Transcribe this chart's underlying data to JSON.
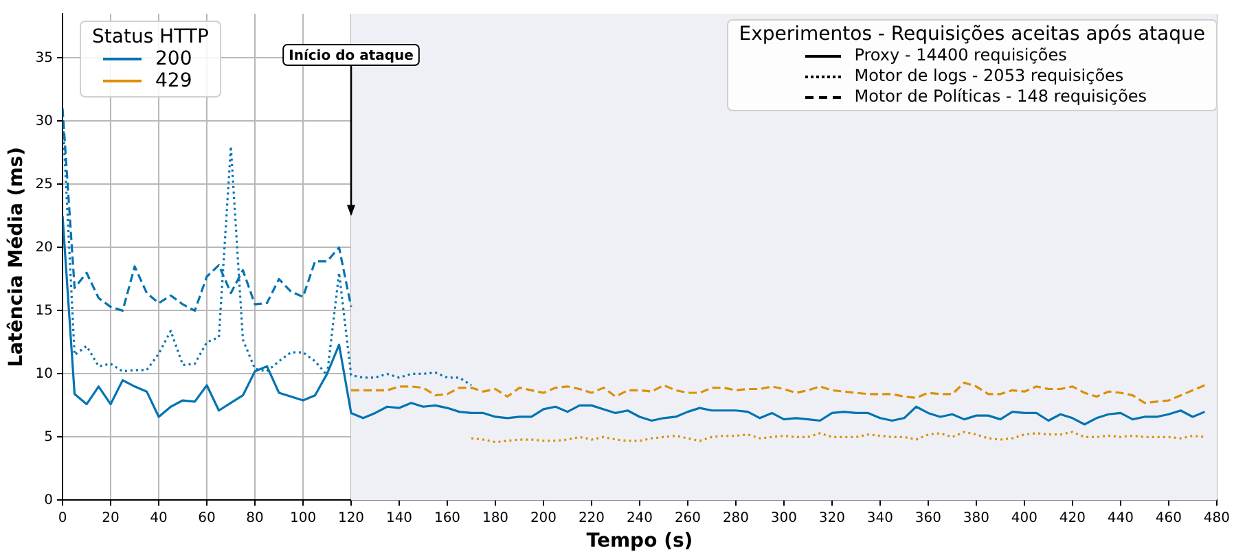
{
  "chart_data": {
    "type": "line",
    "xlabel": "Tempo (s)",
    "ylabel": "Latência Média (ms)",
    "legend_title": "Status HTTP",
    "legend": "top left",
    "grid": true,
    "marker": "none",
    "xlim": [
      0,
      480
    ],
    "xticks": [
      0,
      20,
      40,
      60,
      80,
      100,
      120,
      140,
      160,
      180,
      200,
      220,
      240,
      260,
      280,
      300,
      320,
      340,
      360,
      380,
      400,
      420,
      440,
      460,
      480
    ],
    "ylim": [
      0,
      38.5
    ],
    "yticks": [
      0,
      5,
      10,
      15,
      20,
      25,
      30,
      35
    ],
    "bands": [
      {
        "axis": "x",
        "from": 120,
        "to": 480,
        "color": "#eef0f5"
      }
    ],
    "annotations": [
      "Experimentos - Requisições aceitas após ataque",
      "Proxy - 14400 requisições",
      "Motor de logs - 2053 requisições",
      "Motor de Políticas - 148 requisições",
      {
        "text": "Início do ataque",
        "x": 120,
        "y": 22.5
      }
    ],
    "series": [
      {
        "name": "200",
        "color": "#0173b2",
        "line_style": "solid",
        "x": [
          0,
          5,
          10,
          15,
          20,
          25,
          30,
          35,
          40,
          45,
          50,
          55,
          60,
          65,
          70,
          75,
          80,
          85,
          90,
          95,
          100,
          105,
          110,
          115,
          120,
          125,
          130,
          135,
          140,
          145,
          150,
          155,
          160,
          165,
          170,
          175,
          180,
          185,
          190,
          195,
          200,
          205,
          210,
          215,
          220,
          225,
          230,
          235,
          240,
          245,
          250,
          255,
          260,
          265,
          270,
          275,
          280,
          285,
          290,
          295,
          300,
          305,
          310,
          315,
          320,
          325,
          330,
          335,
          340,
          345,
          350,
          355,
          360,
          365,
          370,
          375,
          380,
          385,
          390,
          395,
          400,
          405,
          410,
          415,
          420,
          425,
          430,
          435,
          440,
          445,
          450,
          455,
          460,
          465,
          470,
          475
        ],
        "values": [
          22.5,
          8.4,
          7.6,
          9.0,
          7.6,
          9.5,
          9.0,
          8.6,
          6.6,
          7.4,
          7.9,
          7.8,
          9.1,
          7.1,
          7.7,
          8.3,
          10.2,
          10.6,
          8.5,
          8.2,
          7.9,
          8.3,
          10.0,
          12.3,
          6.9,
          6.5,
          6.9,
          7.4,
          7.3,
          7.7,
          7.4,
          7.5,
          7.3,
          7.0,
          6.9,
          6.9,
          6.6,
          6.5,
          6.6,
          6.6,
          7.2,
          7.4,
          7.0,
          7.5,
          7.5,
          7.2,
          6.9,
          7.1,
          6.6,
          6.3,
          6.5,
          6.6,
          7.0,
          7.3,
          7.1,
          7.1,
          7.1,
          7.0,
          6.5,
          6.9,
          6.4,
          6.5,
          6.4,
          6.3,
          6.9,
          7.0,
          6.9,
          6.9,
          6.5,
          6.3,
          6.5,
          7.4,
          6.9,
          6.6,
          6.8,
          6.4,
          6.7,
          6.7,
          6.4,
          7.0,
          6.9,
          6.9,
          6.3,
          6.8,
          6.5,
          6.0,
          6.5,
          6.8,
          6.9,
          6.4,
          6.6,
          6.6,
          6.8,
          7.1,
          6.6,
          7.0
        ]
      },
      {
        "color": "#0173b2",
        "line_style": "dotted",
        "x": [
          0,
          5,
          10,
          15,
          20,
          25,
          30,
          35,
          40,
          45,
          50,
          55,
          60,
          65,
          70,
          75,
          80,
          85,
          90,
          95,
          100,
          105,
          110,
          115,
          120,
          125,
          130,
          135,
          140,
          145,
          150,
          155,
          160,
          165,
          170
        ],
        "values": [
          30.5,
          11.5,
          12.2,
          10.6,
          10.8,
          10.2,
          10.3,
          10.3,
          11.6,
          13.4,
          10.7,
          10.8,
          12.5,
          12.9,
          28.0,
          12.7,
          10.4,
          10.2,
          11.0,
          11.7,
          11.7,
          11.0,
          9.9,
          18.0,
          9.9,
          9.7,
          9.7,
          10.0,
          9.7,
          10.0,
          10.0,
          10.1,
          9.7,
          9.7,
          9.1
        ]
      },
      {
        "color": "#0173b2",
        "line_style": "dashed",
        "x": [
          0,
          5,
          10,
          15,
          20,
          25,
          30,
          35,
          40,
          45,
          50,
          55,
          60,
          65,
          70,
          75,
          80,
          85,
          90,
          95,
          100,
          105,
          110,
          115,
          120
        ],
        "values": [
          31.0,
          16.8,
          18.0,
          16.0,
          15.3,
          15.0,
          18.5,
          16.4,
          15.6,
          16.2,
          15.5,
          15.0,
          17.7,
          18.6,
          16.4,
          18.2,
          15.5,
          15.6,
          17.5,
          16.5,
          16.1,
          18.9,
          18.9,
          20.0,
          15.3
        ]
      },
      {
        "color": "#de8f05",
        "line_style": "dotted",
        "x": [
          170,
          175,
          180,
          185,
          190,
          195,
          200,
          205,
          210,
          215,
          220,
          225,
          230,
          235,
          240,
          245,
          250,
          255,
          260,
          265,
          270,
          275,
          280,
          285,
          290,
          295,
          300,
          305,
          310,
          315,
          320,
          325,
          330,
          335,
          340,
          345,
          350,
          355,
          360,
          365,
          370,
          375,
          380,
          385,
          390,
          395,
          400,
          405,
          410,
          415,
          420,
          425,
          430,
          435,
          440,
          445,
          450,
          455,
          460,
          465,
          470,
          475
        ],
        "values": [
          4.9,
          4.8,
          4.6,
          4.7,
          4.8,
          4.8,
          4.7,
          4.7,
          4.8,
          5.0,
          4.8,
          5.0,
          4.8,
          4.7,
          4.7,
          4.9,
          5.0,
          5.1,
          4.9,
          4.7,
          5.0,
          5.1,
          5.1,
          5.2,
          4.9,
          5.0,
          5.1,
          5.0,
          5.0,
          5.3,
          5.0,
          5.0,
          5.0,
          5.2,
          5.1,
          5.0,
          5.0,
          4.8,
          5.2,
          5.3,
          5.0,
          5.4,
          5.2,
          4.9,
          4.8,
          4.9,
          5.2,
          5.3,
          5.2,
          5.2,
          5.4,
          5.0,
          5.0,
          5.1,
          5.0,
          5.1,
          5.0,
          5.0,
          5.0,
          4.9,
          5.1,
          5.0
        ]
      },
      {
        "name": "429",
        "color": "#de8f05",
        "line_style": "dashed",
        "x": [
          120,
          125,
          130,
          135,
          140,
          145,
          150,
          155,
          160,
          165,
          170,
          175,
          180,
          185,
          190,
          195,
          200,
          205,
          210,
          215,
          220,
          225,
          230,
          235,
          240,
          245,
          250,
          255,
          260,
          265,
          270,
          275,
          280,
          285,
          290,
          295,
          300,
          305,
          310,
          315,
          320,
          325,
          330,
          335,
          340,
          345,
          350,
          355,
          360,
          365,
          370,
          375,
          380,
          385,
          390,
          395,
          400,
          405,
          410,
          415,
          420,
          425,
          430,
          435,
          440,
          445,
          450,
          455,
          460,
          465,
          470,
          475
        ],
        "values": [
          8.7,
          8.7,
          8.7,
          8.7,
          9.0,
          9.0,
          8.9,
          8.3,
          8.4,
          8.9,
          8.9,
          8.6,
          8.8,
          8.2,
          8.9,
          8.7,
          8.5,
          8.9,
          9.0,
          8.8,
          8.5,
          8.9,
          8.2,
          8.7,
          8.7,
          8.6,
          9.1,
          8.7,
          8.5,
          8.5,
          8.9,
          8.9,
          8.7,
          8.8,
          8.8,
          9.0,
          8.8,
          8.5,
          8.7,
          9.0,
          8.7,
          8.6,
          8.5,
          8.4,
          8.4,
          8.4,
          8.2,
          8.1,
          8.5,
          8.4,
          8.4,
          9.3,
          9.0,
          8.4,
          8.4,
          8.7,
          8.6,
          9.0,
          8.8,
          8.8,
          9.0,
          8.5,
          8.2,
          8.6,
          8.5,
          8.3,
          7.7,
          7.8,
          7.9,
          8.3,
          8.7,
          9.1
        ]
      }
    ]
  }
}
